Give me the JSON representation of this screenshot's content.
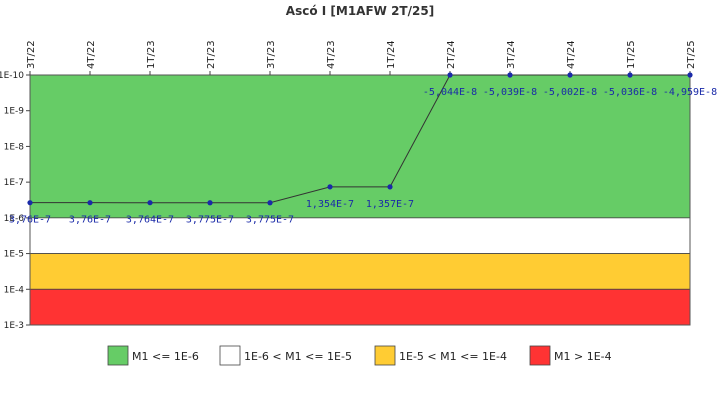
{
  "chart_data": {
    "type": "line",
    "title": "Ascó I [M1AFW 2T/25]",
    "x": [
      "3T/22",
      "4T/22",
      "1T/23",
      "2T/23",
      "3T/23",
      "4T/23",
      "1T/24",
      "2T/24",
      "3T/24",
      "4T/24",
      "1T/25",
      "2T/25"
    ],
    "series": [
      {
        "values": [
          3.76e-07,
          3.76e-07,
          3.764e-07,
          3.775e-07,
          3.775e-07,
          1.354e-07,
          1.357e-07,
          -5.044e-08,
          -5.039e-08,
          -5.002e-08,
          -5.036e-08,
          -4.959e-08
        ],
        "labels": [
          "3,76E-7",
          "3,76E-7",
          "3,764E-7",
          "3,775E-7",
          "3,775E-7",
          "1,354E-7",
          "1,357E-7",
          "-5,044E-8",
          "-5,039E-8",
          "-5,002E-8",
          "-5,036E-8",
          "-4,959E-8"
        ],
        "color": "#1a2aa8"
      }
    ],
    "y_scale": "log",
    "y_axis_reversed": true,
    "ylim": [
      1e-10,
      0.001
    ],
    "y_ticks": [
      {
        "value": 1e-10,
        "label": "1E-10"
      },
      {
        "value": 1e-09,
        "label": "1E-9"
      },
      {
        "value": 1e-08,
        "label": "1E-8"
      },
      {
        "value": 1e-07,
        "label": "1E-7"
      },
      {
        "value": 1e-06,
        "label": "1E-6"
      },
      {
        "value": 1e-05,
        "label": "1E-5"
      },
      {
        "value": 0.0001,
        "label": "1E-4"
      },
      {
        "value": 0.001,
        "label": "1E-3"
      }
    ],
    "bands": [
      {
        "from": 1e-10,
        "to": 1e-06,
        "color": "#66cc66",
        "label": "M1 <= 1E-6"
      },
      {
        "from": 1e-06,
        "to": 1e-05,
        "color": "#ffffff",
        "label": "1E-6 < M1 <= 1E-5"
      },
      {
        "from": 1e-05,
        "to": 0.0001,
        "color": "#ffcc33",
        "label": "1E-5 < M1 <= 1E-4"
      },
      {
        "from": 0.0001,
        "to": 0.001,
        "color": "#ff3333",
        "label": "M1 > 1E-4"
      }
    ],
    "legend_position": "bottom",
    "x_tick_rotation": "vertical",
    "x_axis_position": "top",
    "grid": false
  }
}
